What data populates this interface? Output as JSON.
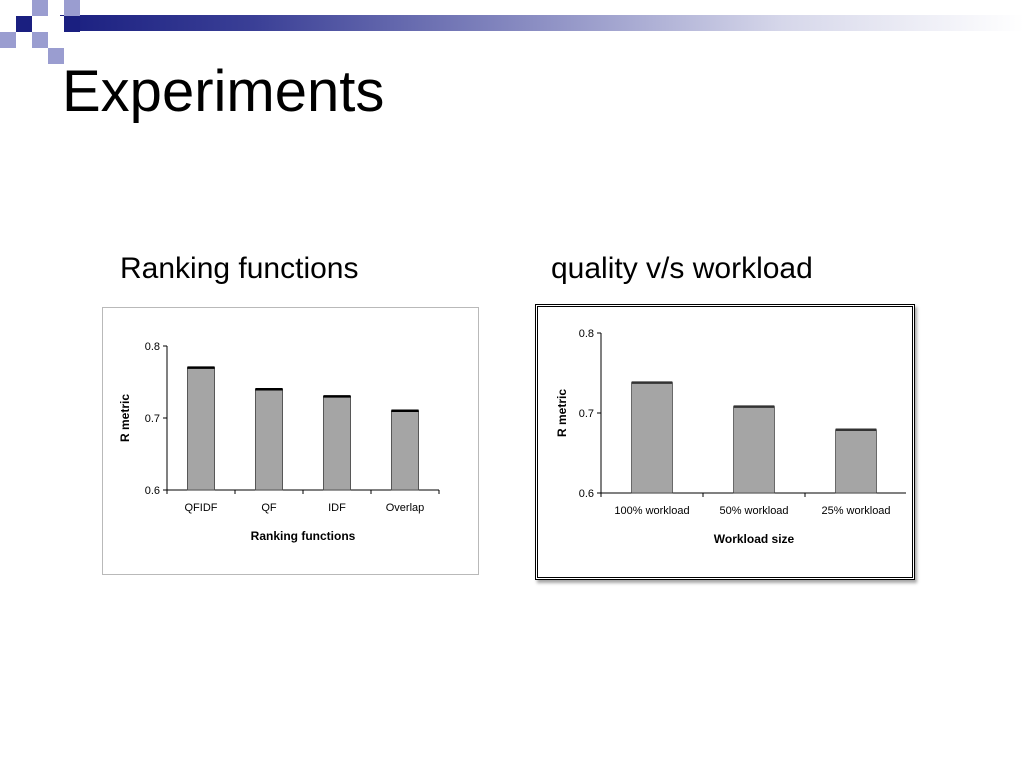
{
  "slide": {
    "title": "Experiments",
    "colors": {
      "banner_dark": "#1a1f80",
      "square_dark": "#1a1f80",
      "square_light": "#9a9dd0",
      "bar_fill": "#a5a5a5"
    }
  },
  "captions": {
    "left": "Ranking functions",
    "right": "quality v/s workload"
  },
  "chart_data": [
    {
      "type": "bar",
      "title": "Ranking functions",
      "categories": [
        "QFIDF",
        "QF",
        "IDF",
        "Overlap"
      ],
      "values": [
        0.77,
        0.74,
        0.73,
        0.71
      ],
      "xlabel": "Ranking functions",
      "ylabel": "R metric",
      "ylim": [
        0.6,
        0.8
      ],
      "yticks": [
        "0.6",
        "0.7",
        "0.8"
      ],
      "grid": false,
      "bar_color": "#a5a5a5",
      "bar_top_edge": "#000000"
    },
    {
      "type": "bar",
      "title": "quality v/s workload",
      "categories": [
        "100% workload",
        "50% workload",
        "25% workload"
      ],
      "values": [
        0.738,
        0.708,
        0.679
      ],
      "xlabel": "Workload size",
      "ylabel": "R metric",
      "ylim": [
        0.6,
        0.8
      ],
      "yticks": [
        "0.6",
        "0.7",
        "0.8"
      ],
      "grid": false,
      "bar_color": "#a5a5a5",
      "bar_top_edge": "#333333"
    }
  ]
}
